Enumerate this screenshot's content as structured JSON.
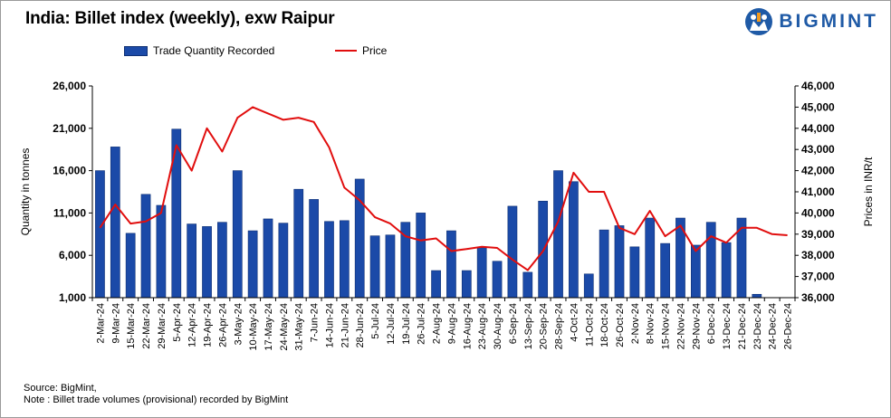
{
  "header": {
    "title": "India: Billet index (weekly), exw Raipur",
    "brand": "BIGMINT",
    "brand_color": "#1f5aa6",
    "logo_icon": "bigmint-logo-icon"
  },
  "footer": {
    "source": "Source: BigMint,",
    "note": "Note : Billet trade volumes (provisional) recorded by BigMint"
  },
  "chart_data": {
    "type": "bar",
    "categories": [
      "2-Mar-24",
      "9-Mar-24",
      "15-Mar-24",
      "22-Mar-24",
      "29-Mar-24",
      "5-Apr-24",
      "12-Apr-24",
      "19-Apr-24",
      "26-Apr-24",
      "3-May-24",
      "10-May-24",
      "17-May-24",
      "24-May-24",
      "31-May-24",
      "7-Jun-24",
      "14-Jun-24",
      "21-Jun-24",
      "28-Jun-24",
      "5-Jul-24",
      "12-Jul-24",
      "19-Jul-24",
      "26-Jul-24",
      "2-Aug-24",
      "9-Aug-24",
      "16-Aug-24",
      "23-Aug-24",
      "30-Aug-24",
      "6-Sep-24",
      "13-Sep-24",
      "20-Sep-24",
      "28-Sep-24",
      "4-Oct-24",
      "11-Oct-24",
      "18-Oct-24",
      "26-Oct-24",
      "2-Nov-24",
      "8-Nov-24",
      "15-Nov-24",
      "22-Nov-24",
      "29-Nov-24",
      "6-Dec-24",
      "13-Dec-24",
      "21-Dec-24",
      "23-Dec-24",
      "24-Dec-24",
      "26-Dec-24"
    ],
    "series": [
      {
        "name": "Trade Quantity Recorded",
        "type": "bar",
        "axis": "left",
        "color": "#1b4aa8",
        "values": [
          16000,
          18800,
          8600,
          13200,
          11900,
          20900,
          9700,
          9400,
          9900,
          16000,
          8900,
          10300,
          9800,
          13800,
          12600,
          10000,
          10100,
          15000,
          8300,
          8400,
          9900,
          11000,
          4200,
          8900,
          4200,
          6900,
          5300,
          11800,
          4000,
          12400,
          16000,
          14700,
          3800,
          9000,
          9500,
          7000,
          10400,
          7400,
          10400,
          7200,
          9900,
          7500,
          10400,
          1400,
          null,
          null
        ]
      },
      {
        "name": "Price",
        "type": "line",
        "axis": "right",
        "color": "#e10e0e",
        "values": [
          39300,
          40400,
          39500,
          39600,
          40000,
          43200,
          42000,
          44000,
          42900,
          44500,
          45000,
          44700,
          44400,
          44500,
          44300,
          43100,
          41200,
          40600,
          39800,
          39500,
          38900,
          38700,
          38800,
          38200,
          38300,
          38400,
          38350,
          37800,
          37300,
          38200,
          39600,
          41900,
          41000,
          41000,
          39300,
          39000,
          40100,
          38900,
          39400,
          38200,
          38900,
          38600,
          39300,
          39300,
          39000,
          38950
        ]
      }
    ],
    "ylabel": "Quantity in tonnes",
    "ylabel_right": "Prices in INR/t",
    "ylim": [
      1000,
      26000
    ],
    "ylim_right": [
      36000,
      46000
    ],
    "yticks": [
      "1,000",
      "6,000",
      "11,000",
      "16,000",
      "21,000",
      "26,000"
    ],
    "yticks_right": [
      "36,000",
      "37,000",
      "38,000",
      "39,000",
      "40,000",
      "41,000",
      "42,000",
      "43,000",
      "44,000",
      "45,000",
      "46,000"
    ],
    "grid": false,
    "legend": "top-center"
  }
}
